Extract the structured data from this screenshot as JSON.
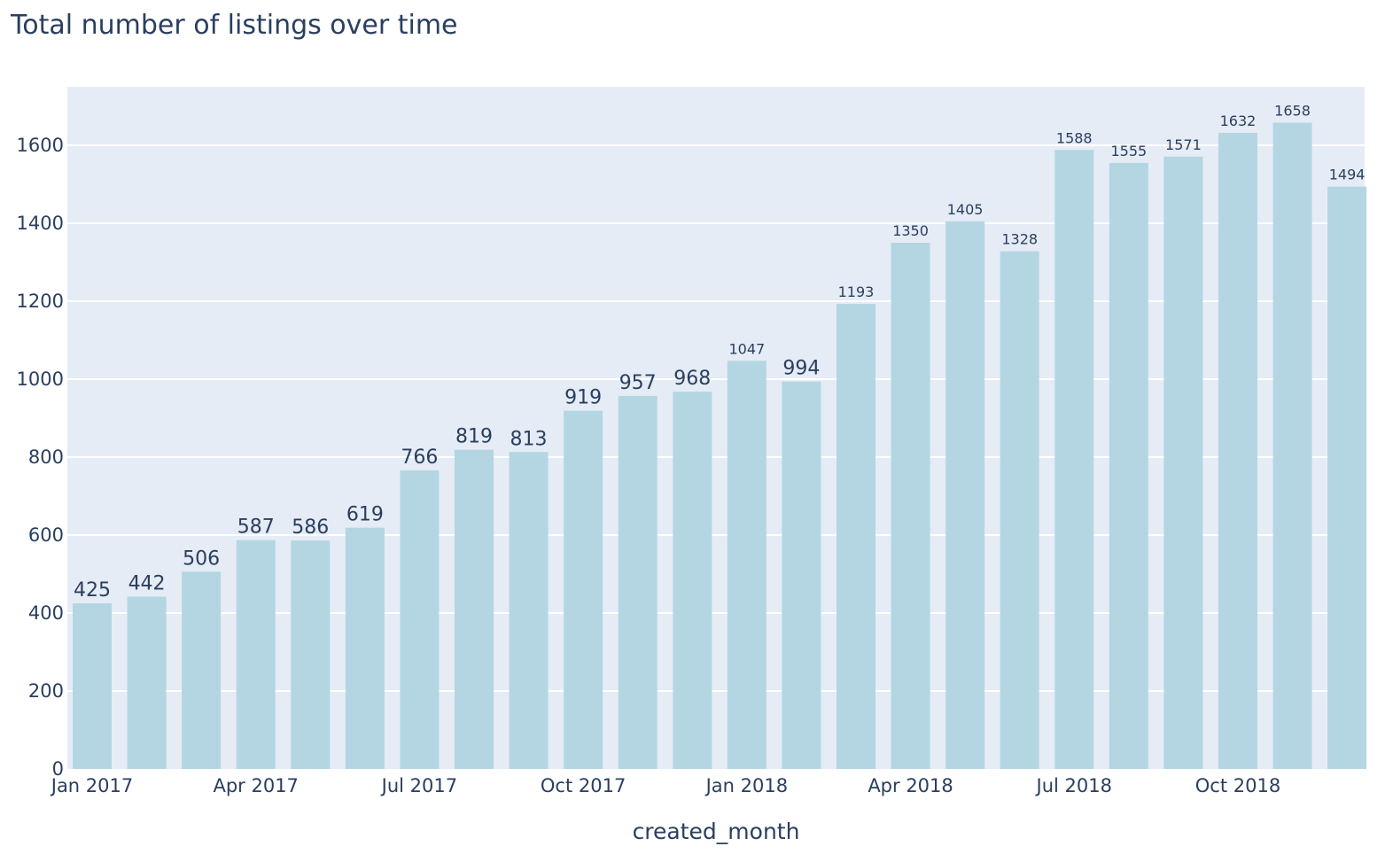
{
  "chart_data": {
    "type": "bar",
    "title": "Total number of listings over time",
    "xlabel": "created_month",
    "ylabel": "",
    "ylim": [
      0,
      1750
    ],
    "y_ticks": [
      0,
      200,
      400,
      600,
      800,
      1000,
      1200,
      1400,
      1600
    ],
    "x_tick_labels": [
      {
        "month_index": 0,
        "label": "Jan 2017"
      },
      {
        "month_index": 3,
        "label": "Apr 2017"
      },
      {
        "month_index": 6,
        "label": "Jul 2017"
      },
      {
        "month_index": 9,
        "label": "Oct 2017"
      },
      {
        "month_index": 12,
        "label": "Jan 2018"
      },
      {
        "month_index": 15,
        "label": "Apr 2018"
      },
      {
        "month_index": 18,
        "label": "Jul 2018"
      },
      {
        "month_index": 21,
        "label": "Oct 2018"
      }
    ],
    "categories": [
      "2017-01",
      "2017-02",
      "2017-03",
      "2017-04",
      "2017-05",
      "2017-06",
      "2017-07",
      "2017-08",
      "2017-09",
      "2017-10",
      "2017-11",
      "2017-12",
      "2018-01",
      "2018-02",
      "2018-03",
      "2018-04",
      "2018-05",
      "2018-06",
      "2018-07",
      "2018-08",
      "2018-09",
      "2018-10",
      "2018-11",
      "2018-12"
    ],
    "values": [
      425,
      442,
      506,
      587,
      586,
      619,
      766,
      819,
      813,
      919,
      957,
      968,
      1047,
      994,
      1193,
      1350,
      1405,
      1328,
      1588,
      1555,
      1571,
      1632,
      1658,
      1494
    ],
    "bar_color": "#b3d6e2",
    "plot_bg": "#e5ecf6",
    "grid": true,
    "legend": "none"
  }
}
